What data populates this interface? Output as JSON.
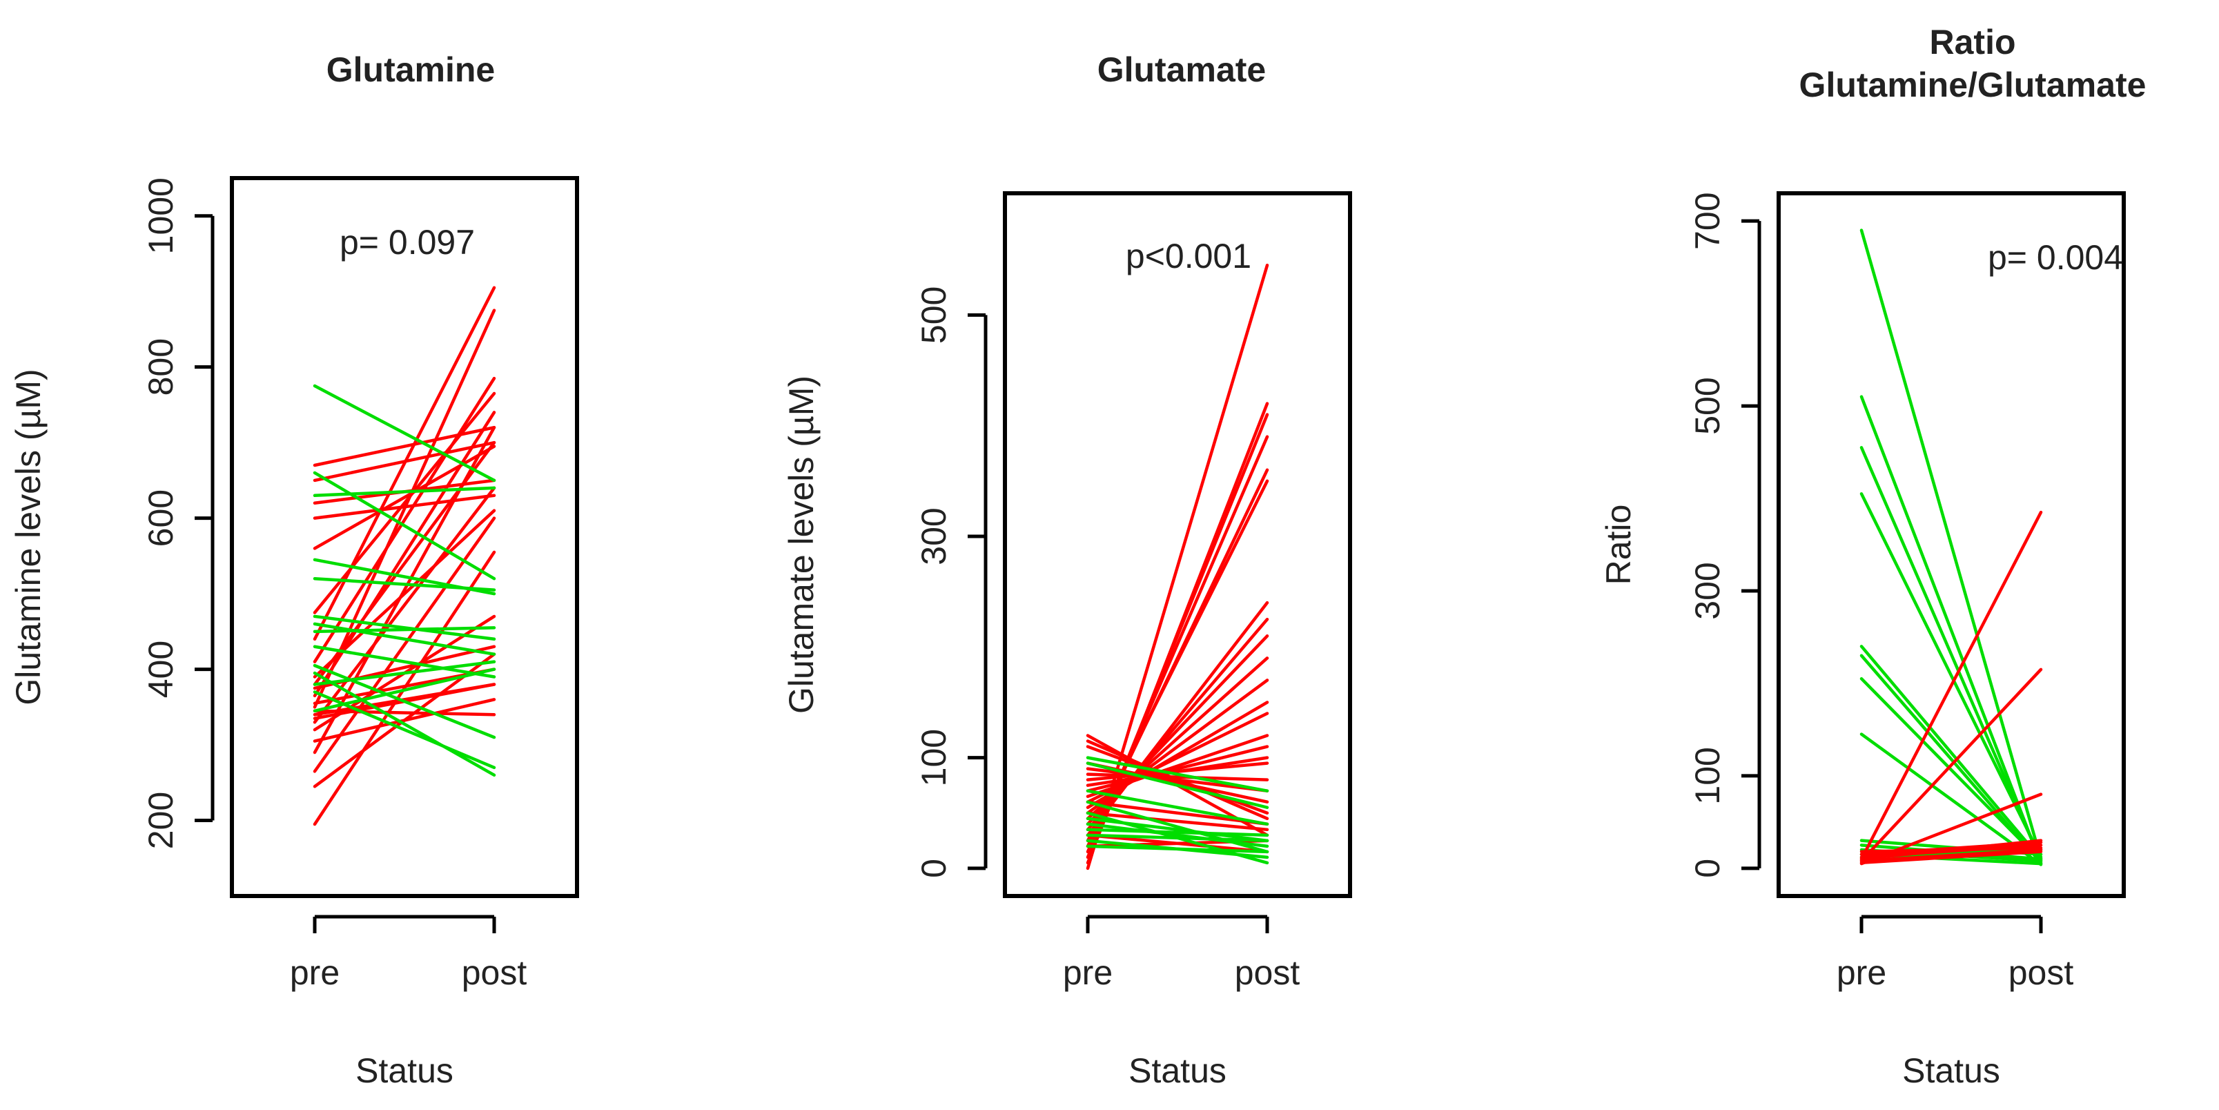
{
  "chart_data": [
    {
      "type": "line",
      "title": [
        "Glutamine"
      ],
      "xlabel": "Status",
      "ylabel": "Glutamine levels (µM)",
      "categories": [
        "pre",
        "post"
      ],
      "ylim": [
        100,
        1050
      ],
      "yticks": [
        200,
        400,
        600,
        800,
        1000
      ],
      "annotation": "p= 0.097",
      "colors": {
        "increase": "#ff0000",
        "decrease": "#00dd00"
      },
      "series": [
        {
          "values": [
            195,
            555
          ],
          "color": "#ff0000"
        },
        {
          "values": [
            245,
            420
          ],
          "color": "#ff0000"
        },
        {
          "values": [
            265,
            600
          ],
          "color": "#ff0000"
        },
        {
          "values": [
            290,
            720
          ],
          "color": "#ff0000"
        },
        {
          "values": [
            305,
            360
          ],
          "color": "#ff0000"
        },
        {
          "values": [
            320,
            470
          ],
          "color": "#ff0000"
        },
        {
          "values": [
            330,
            640
          ],
          "color": "#ff0000"
        },
        {
          "values": [
            340,
            380
          ],
          "color": "#ff0000"
        },
        {
          "values": [
            350,
            875
          ],
          "color": "#ff0000"
        },
        {
          "values": [
            355,
            400
          ],
          "color": "#ff0000"
        },
        {
          "values": [
            365,
            740
          ],
          "color": "#ff0000"
        },
        {
          "values": [
            375,
            430
          ],
          "color": "#ff0000"
        },
        {
          "values": [
            380,
            700
          ],
          "color": "#ff0000"
        },
        {
          "values": [
            390,
            610
          ],
          "color": "#ff0000"
        },
        {
          "values": [
            410,
            785
          ],
          "color": "#ff0000"
        },
        {
          "values": [
            440,
            905
          ],
          "color": "#ff0000"
        },
        {
          "values": [
            475,
            765
          ],
          "color": "#ff0000"
        },
        {
          "values": [
            560,
            695
          ],
          "color": "#ff0000"
        },
        {
          "values": [
            600,
            630
          ],
          "color": "#ff0000"
        },
        {
          "values": [
            620,
            650
          ],
          "color": "#ff0000"
        },
        {
          "values": [
            650,
            700
          ],
          "color": "#ff0000"
        },
        {
          "values": [
            670,
            720
          ],
          "color": "#ff0000"
        },
        {
          "values": [
            335,
            380
          ],
          "color": "#ff0000"
        },
        {
          "values": [
            345,
            340
          ],
          "color": "#ff0000"
        },
        {
          "values": [
            775,
            650
          ],
          "color": "#00dd00"
        },
        {
          "values": [
            660,
            520
          ],
          "color": "#00dd00"
        },
        {
          "values": [
            630,
            640
          ],
          "color": "#00dd00"
        },
        {
          "values": [
            545,
            500
          ],
          "color": "#00dd00"
        },
        {
          "values": [
            520,
            505
          ],
          "color": "#00dd00"
        },
        {
          "values": [
            470,
            440
          ],
          "color": "#00dd00"
        },
        {
          "values": [
            460,
            420
          ],
          "color": "#00dd00"
        },
        {
          "values": [
            450,
            455
          ],
          "color": "#00dd00"
        },
        {
          "values": [
            430,
            390
          ],
          "color": "#00dd00"
        },
        {
          "values": [
            405,
            310
          ],
          "color": "#00dd00"
        },
        {
          "values": [
            395,
            260
          ],
          "color": "#00dd00"
        },
        {
          "values": [
            380,
            410
          ],
          "color": "#00dd00"
        },
        {
          "values": [
            370,
            270
          ],
          "color": "#00dd00"
        },
        {
          "values": [
            345,
            400
          ],
          "color": "#00dd00"
        }
      ]
    },
    {
      "type": "line",
      "title": [
        "Glutamate"
      ],
      "xlabel": "Status",
      "ylabel": "Glutamate levels (µM)",
      "categories": [
        "pre",
        "post"
      ],
      "ylim": [
        -25,
        610
      ],
      "yticks": [
        0,
        100,
        300,
        500
      ],
      "annotation": "p<0.001",
      "colors": {
        "increase": "#ff0000",
        "decrease": "#00dd00"
      },
      "series": [
        {
          "values": [
            0,
            545
          ],
          "color": "#ff0000"
        },
        {
          "values": [
            5,
            420
          ],
          "color": "#ff0000"
        },
        {
          "values": [
            10,
            410
          ],
          "color": "#ff0000"
        },
        {
          "values": [
            15,
            390
          ],
          "color": "#ff0000"
        },
        {
          "values": [
            20,
            360
          ],
          "color": "#ff0000"
        },
        {
          "values": [
            25,
            350
          ],
          "color": "#ff0000"
        },
        {
          "values": [
            30,
            240
          ],
          "color": "#ff0000"
        },
        {
          "values": [
            35,
            225
          ],
          "color": "#ff0000"
        },
        {
          "values": [
            40,
            210
          ],
          "color": "#ff0000"
        },
        {
          "values": [
            45,
            190
          ],
          "color": "#ff0000"
        },
        {
          "values": [
            50,
            170
          ],
          "color": "#ff0000"
        },
        {
          "values": [
            55,
            150
          ],
          "color": "#ff0000"
        },
        {
          "values": [
            60,
            140
          ],
          "color": "#ff0000"
        },
        {
          "values": [
            65,
            120
          ],
          "color": "#ff0000"
        },
        {
          "values": [
            70,
            110
          ],
          "color": "#ff0000"
        },
        {
          "values": [
            75,
            100
          ],
          "color": "#ff0000"
        },
        {
          "values": [
            80,
            95
          ],
          "color": "#ff0000"
        },
        {
          "values": [
            85,
            80
          ],
          "color": "#ff0000"
        },
        {
          "values": [
            90,
            70
          ],
          "color": "#ff0000"
        },
        {
          "values": [
            95,
            60
          ],
          "color": "#ff0000"
        },
        {
          "values": [
            110,
            50
          ],
          "color": "#ff0000"
        },
        {
          "values": [
            115,
            45
          ],
          "color": "#ff0000"
        },
        {
          "values": [
            120,
            30
          ],
          "color": "#ff0000"
        },
        {
          "values": [
            20,
            25
          ],
          "color": "#ff0000"
        },
        {
          "values": [
            30,
            15
          ],
          "color": "#ff0000"
        },
        {
          "values": [
            50,
            35
          ],
          "color": "#ff0000"
        },
        {
          "values": [
            60,
            40
          ],
          "color": "#ff0000"
        },
        {
          "values": [
            100,
            70
          ],
          "color": "#00dd00"
        },
        {
          "values": [
            95,
            55
          ],
          "color": "#00dd00"
        },
        {
          "values": [
            60,
            15
          ],
          "color": "#00dd00"
        },
        {
          "values": [
            50,
            5
          ],
          "color": "#00dd00"
        },
        {
          "values": [
            45,
            25
          ],
          "color": "#00dd00"
        },
        {
          "values": [
            40,
            20
          ],
          "color": "#00dd00"
        },
        {
          "values": [
            35,
            30
          ],
          "color": "#00dd00"
        },
        {
          "values": [
            30,
            25
          ],
          "color": "#00dd00"
        },
        {
          "values": [
            25,
            10
          ],
          "color": "#00dd00"
        },
        {
          "values": [
            20,
            15
          ],
          "color": "#00dd00"
        },
        {
          "values": [
            70,
            40
          ],
          "color": "#00dd00"
        }
      ]
    },
    {
      "type": "line",
      "title": [
        "Ratio",
        "Glutamine/Glutamate"
      ],
      "xlabel": "Status",
      "ylabel": "Ratio",
      "categories": [
        "pre",
        "post"
      ],
      "ylim": [
        -30,
        730
      ],
      "yticks": [
        0,
        100,
        300,
        500,
        700
      ],
      "annotation": "p= 0.004",
      "colors": {
        "increase": "#ff0000",
        "decrease": "#00dd00"
      },
      "series": [
        {
          "values": [
            690,
            10
          ],
          "color": "#00dd00"
        },
        {
          "values": [
            510,
            5
          ],
          "color": "#00dd00"
        },
        {
          "values": [
            455,
            8
          ],
          "color": "#00dd00"
        },
        {
          "values": [
            405,
            12
          ],
          "color": "#00dd00"
        },
        {
          "values": [
            240,
            10
          ],
          "color": "#00dd00"
        },
        {
          "values": [
            230,
            6
          ],
          "color": "#00dd00"
        },
        {
          "values": [
            205,
            8
          ],
          "color": "#00dd00"
        },
        {
          "values": [
            145,
            4
          ],
          "color": "#00dd00"
        },
        {
          "values": [
            30,
            15
          ],
          "color": "#00dd00"
        },
        {
          "values": [
            25,
            10
          ],
          "color": "#00dd00"
        },
        {
          "values": [
            20,
            8
          ],
          "color": "#00dd00"
        },
        {
          "values": [
            15,
            5
          ],
          "color": "#00dd00"
        },
        {
          "values": [
            12,
            20
          ],
          "color": "#00dd00"
        },
        {
          "values": [
            10,
            385
          ],
          "color": "#ff0000"
        },
        {
          "values": [
            8,
            215
          ],
          "color": "#ff0000"
        },
        {
          "values": [
            5,
            80
          ],
          "color": "#ff0000"
        },
        {
          "values": [
            10,
            30
          ],
          "color": "#ff0000"
        },
        {
          "values": [
            12,
            25
          ],
          "color": "#ff0000"
        },
        {
          "values": [
            8,
            20
          ],
          "color": "#ff0000"
        },
        {
          "values": [
            15,
            28
          ],
          "color": "#ff0000"
        },
        {
          "values": [
            6,
            18
          ],
          "color": "#ff0000"
        },
        {
          "values": [
            18,
            22
          ],
          "color": "#ff0000"
        }
      ]
    }
  ]
}
